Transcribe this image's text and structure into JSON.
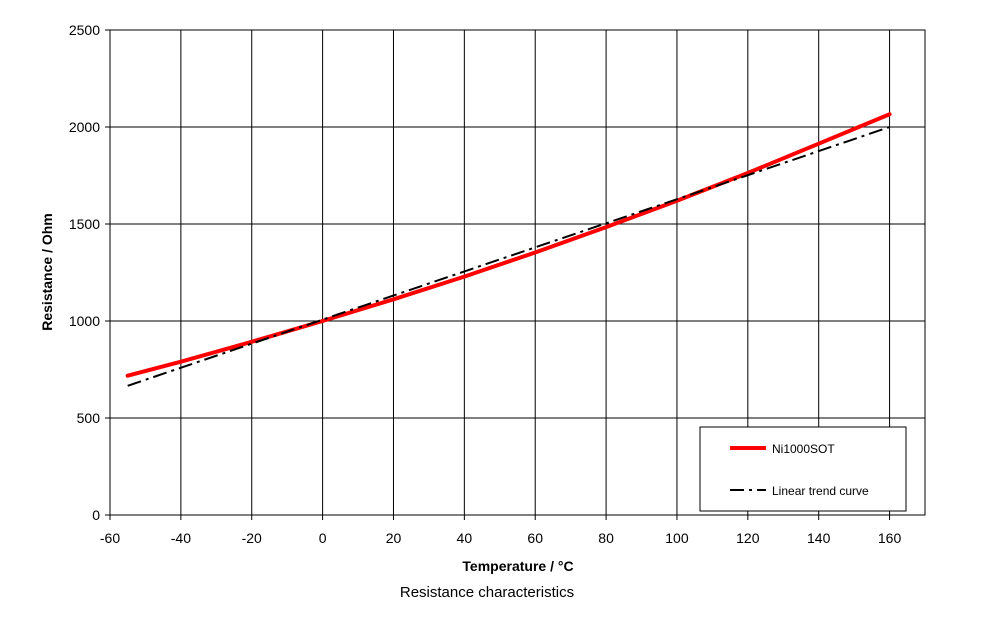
{
  "caption": "Resistance characteristics",
  "chart_data": {
    "type": "line",
    "xlabel": "Temperature / °C",
    "ylabel": "Resistance / Ohm",
    "xlim": [
      -60,
      170
    ],
    "ylim": [
      0,
      2500
    ],
    "x_ticks": [
      -60,
      -40,
      -20,
      0,
      20,
      40,
      60,
      80,
      100,
      120,
      140,
      160
    ],
    "y_ticks": [
      0,
      500,
      1000,
      1500,
      2000,
      2500
    ],
    "grid": true,
    "legend_position": "bottom-right",
    "series": [
      {
        "name": "Ni1000SOT",
        "color": "#ff0000",
        "style": "solid",
        "x": [
          -55,
          -40,
          -20,
          0,
          20,
          40,
          60,
          80,
          100,
          120,
          140,
          160
        ],
        "y": [
          718,
          790,
          893,
          1000,
          1112,
          1229,
          1353,
          1484,
          1620,
          1763,
          1914,
          2066
        ]
      },
      {
        "name": "Linear trend curve",
        "color": "#000000",
        "style": "dash-dot",
        "x": [
          -55,
          160
        ],
        "y": [
          666,
          2000
        ]
      }
    ]
  }
}
